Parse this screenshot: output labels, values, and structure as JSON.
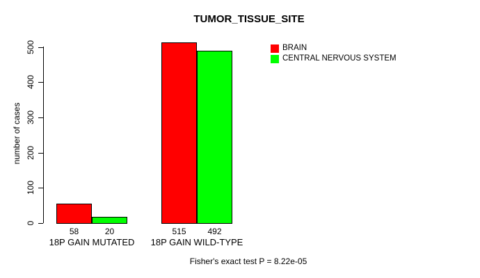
{
  "title": "TUMOR_TISSUE_SITE",
  "annotation": "Fisher's exact test P = 8.22e-05",
  "colors": {
    "brain": "#FF0000",
    "central_nervous_system": "#00FF00",
    "axis": "#000000",
    "background": "#FFFFFF"
  },
  "legend": {
    "position": "top-right",
    "items": [
      {
        "label": "BRAIN",
        "color": "#FF0000"
      },
      {
        "label": "CENTRAL NERVOUS SYSTEM",
        "color": "#00FF00"
      }
    ]
  },
  "chart_data": {
    "type": "bar",
    "title": "TUMOR_TISSUE_SITE",
    "categories": [
      "18P GAIN MUTATED",
      "18P GAIN WILD-TYPE"
    ],
    "series": [
      {
        "name": "BRAIN",
        "color": "#FF0000",
        "values": [
          58,
          515
        ]
      },
      {
        "name": "CENTRAL NERVOUS SYSTEM",
        "color": "#00FF00",
        "values": [
          20,
          492
        ]
      }
    ],
    "bar_value_labels": [
      [
        58,
        20
      ],
      [
        515,
        492
      ]
    ],
    "xlabel": "",
    "ylabel": "number of cases",
    "ylim": [
      0,
      500
    ],
    "yticks": [
      0,
      100,
      200,
      300,
      400,
      500
    ],
    "grid": false,
    "bar_outline": "#000000",
    "legend_position": "top-right",
    "annotation": "Fisher's exact test P = 8.22e-05"
  }
}
